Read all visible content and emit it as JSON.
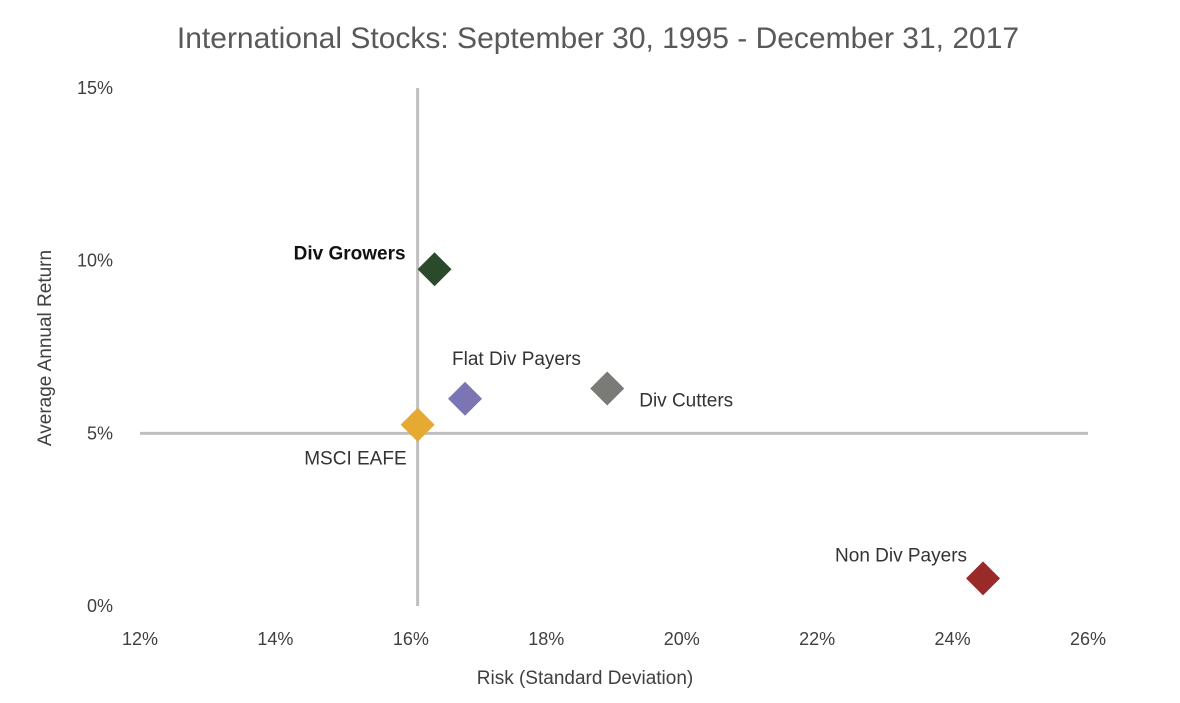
{
  "chart_data": {
    "type": "scatter",
    "title": "International Stocks: September 30, 1995 - December 31, 2017",
    "xlabel": "Risk (Standard Deviation)",
    "ylabel": "Average Annual Return",
    "xlim": [
      12,
      26
    ],
    "ylim": [
      0,
      15
    ],
    "x_ticks": [
      12,
      14,
      16,
      18,
      20,
      22,
      24,
      26
    ],
    "y_ticks": [
      0,
      5,
      10,
      15
    ],
    "x_tick_labels": [
      "12%",
      "14%",
      "16%",
      "18%",
      "20%",
      "22%",
      "24%",
      "26%"
    ],
    "y_tick_labels": [
      "0%",
      "5%",
      "10%",
      "15%"
    ],
    "reference_lines": {
      "x": 16.1,
      "y": 5.0
    },
    "points": [
      {
        "label": "Div Growers",
        "x": 16.35,
        "y": 9.75,
        "color": "#2b4a2b",
        "bold": true
      },
      {
        "label": "Flat Div Payers",
        "x": 16.8,
        "y": 6.0,
        "color": "#7b76b3",
        "bold": false
      },
      {
        "label": "Div Cutters",
        "x": 18.9,
        "y": 6.3,
        "color": "#7a7a77",
        "bold": false
      },
      {
        "label": "MSCI EAFE",
        "x": 16.1,
        "y": 5.25,
        "color": "#e6aa32",
        "bold": false
      },
      {
        "label": "Non Div Payers",
        "x": 24.45,
        "y": 0.8,
        "color": "#9a2a2a",
        "bold": false
      }
    ],
    "grid": false,
    "legend": "none"
  }
}
